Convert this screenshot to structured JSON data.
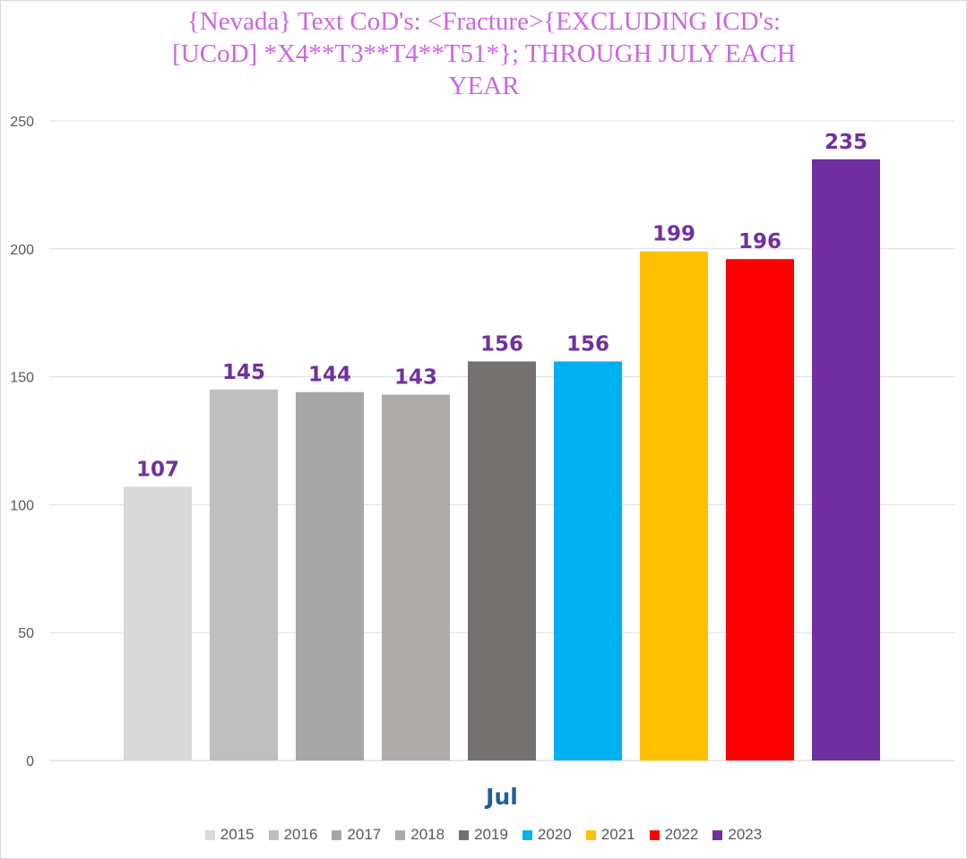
{
  "chart_data": {
    "type": "bar",
    "title_lines": [
      "{Nevada}  Text CoD's: <Fracture>{EXCLUDING ICD's:",
      "[UCoD] *X4**T3**T4**T51*}; THROUGH JULY EACH",
      "YEAR"
    ],
    "categories": [
      "Jul"
    ],
    "xlabel": "Jul",
    "ylabel": "",
    "ylim": [
      0,
      250
    ],
    "yticks": [
      "0",
      "50",
      "100",
      "150",
      "200",
      "250"
    ],
    "ytick_values": [
      0,
      50,
      100,
      150,
      200,
      250
    ],
    "grid": true,
    "legend_position": "bottom",
    "series": [
      {
        "name": "2015",
        "values": [
          107
        ],
        "label": "107",
        "color": "#d9d9d9"
      },
      {
        "name": "2016",
        "values": [
          145
        ],
        "label": "145",
        "color": "#bfbfbf"
      },
      {
        "name": "2017",
        "values": [
          144
        ],
        "label": "144",
        "color": "#a6a6a6"
      },
      {
        "name": "2018",
        "values": [
          143
        ],
        "label": "143",
        "color": "#afabab"
      },
      {
        "name": "2019",
        "values": [
          156
        ],
        "label": "156",
        "color": "#767171"
      },
      {
        "name": "2020",
        "values": [
          156
        ],
        "label": "156",
        "color": "#00b0f0"
      },
      {
        "name": "2021",
        "values": [
          199
        ],
        "label": "199",
        "color": "#ffc000"
      },
      {
        "name": "2022",
        "values": [
          196
        ],
        "label": "196",
        "color": "#ff0000"
      },
      {
        "name": "2023",
        "values": [
          235
        ],
        "label": "235",
        "color": "#7030a0"
      }
    ],
    "data_label_color": "#7030a0",
    "xlabel_color": "#1f5f99"
  }
}
